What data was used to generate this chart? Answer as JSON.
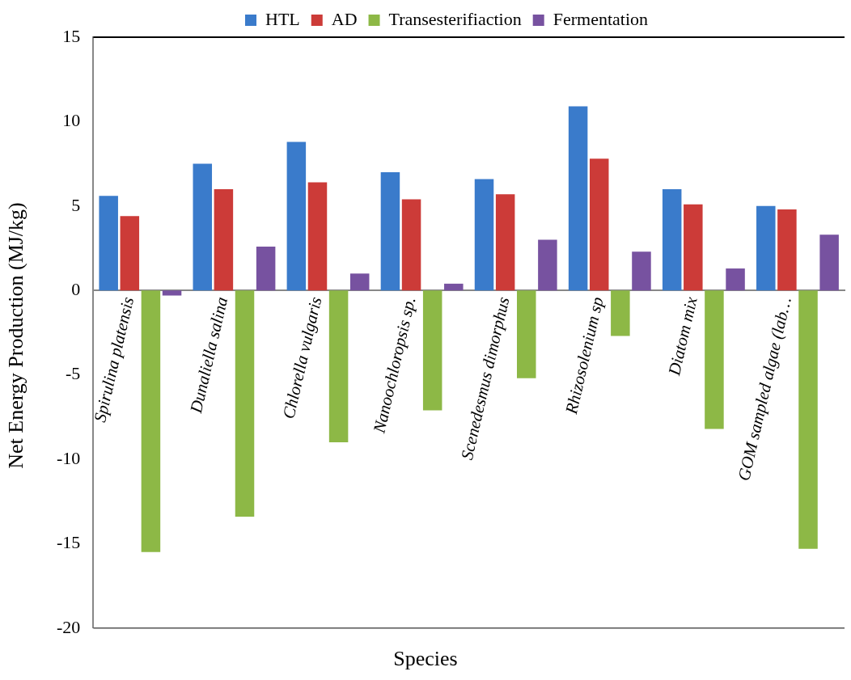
{
  "chart_data": {
    "type": "bar",
    "xlabel": "Species",
    "ylabel": "Net Energy Production (MJ/kg)",
    "categories": [
      "Spirulina platensis",
      "Dunaliella salina",
      "Chlorella vulgaris",
      "Nanoochloropsis sp.",
      "Scenedesmus dimorphus",
      "Rhizosolenium sp",
      "Diatom mix",
      "GOM sampled algae (lab…"
    ],
    "series": [
      {
        "name": "HTL",
        "color": "#3a7bcb",
        "values": [
          5.6,
          7.5,
          8.8,
          7.0,
          6.6,
          10.9,
          6.0,
          5.0
        ]
      },
      {
        "name": "AD",
        "color": "#cc3b38",
        "values": [
          4.4,
          6.0,
          6.4,
          5.4,
          5.7,
          7.8,
          5.1,
          4.8
        ]
      },
      {
        "name": "Transesterifiaction",
        "color": "#8db846",
        "values": [
          -15.5,
          -13.4,
          -9.0,
          -7.1,
          -5.2,
          -2.7,
          -8.2,
          -15.3
        ]
      },
      {
        "name": "Fermentation",
        "color": "#7752a0",
        "values": [
          -0.3,
          2.6,
          1.0,
          0.4,
          3.0,
          2.3,
          1.3,
          3.3
        ]
      }
    ],
    "ylim": [
      -20,
      15
    ],
    "yticks": [
      -20,
      -15,
      -10,
      -5,
      0,
      5,
      10,
      15
    ],
    "grid": false,
    "legend": "top"
  }
}
